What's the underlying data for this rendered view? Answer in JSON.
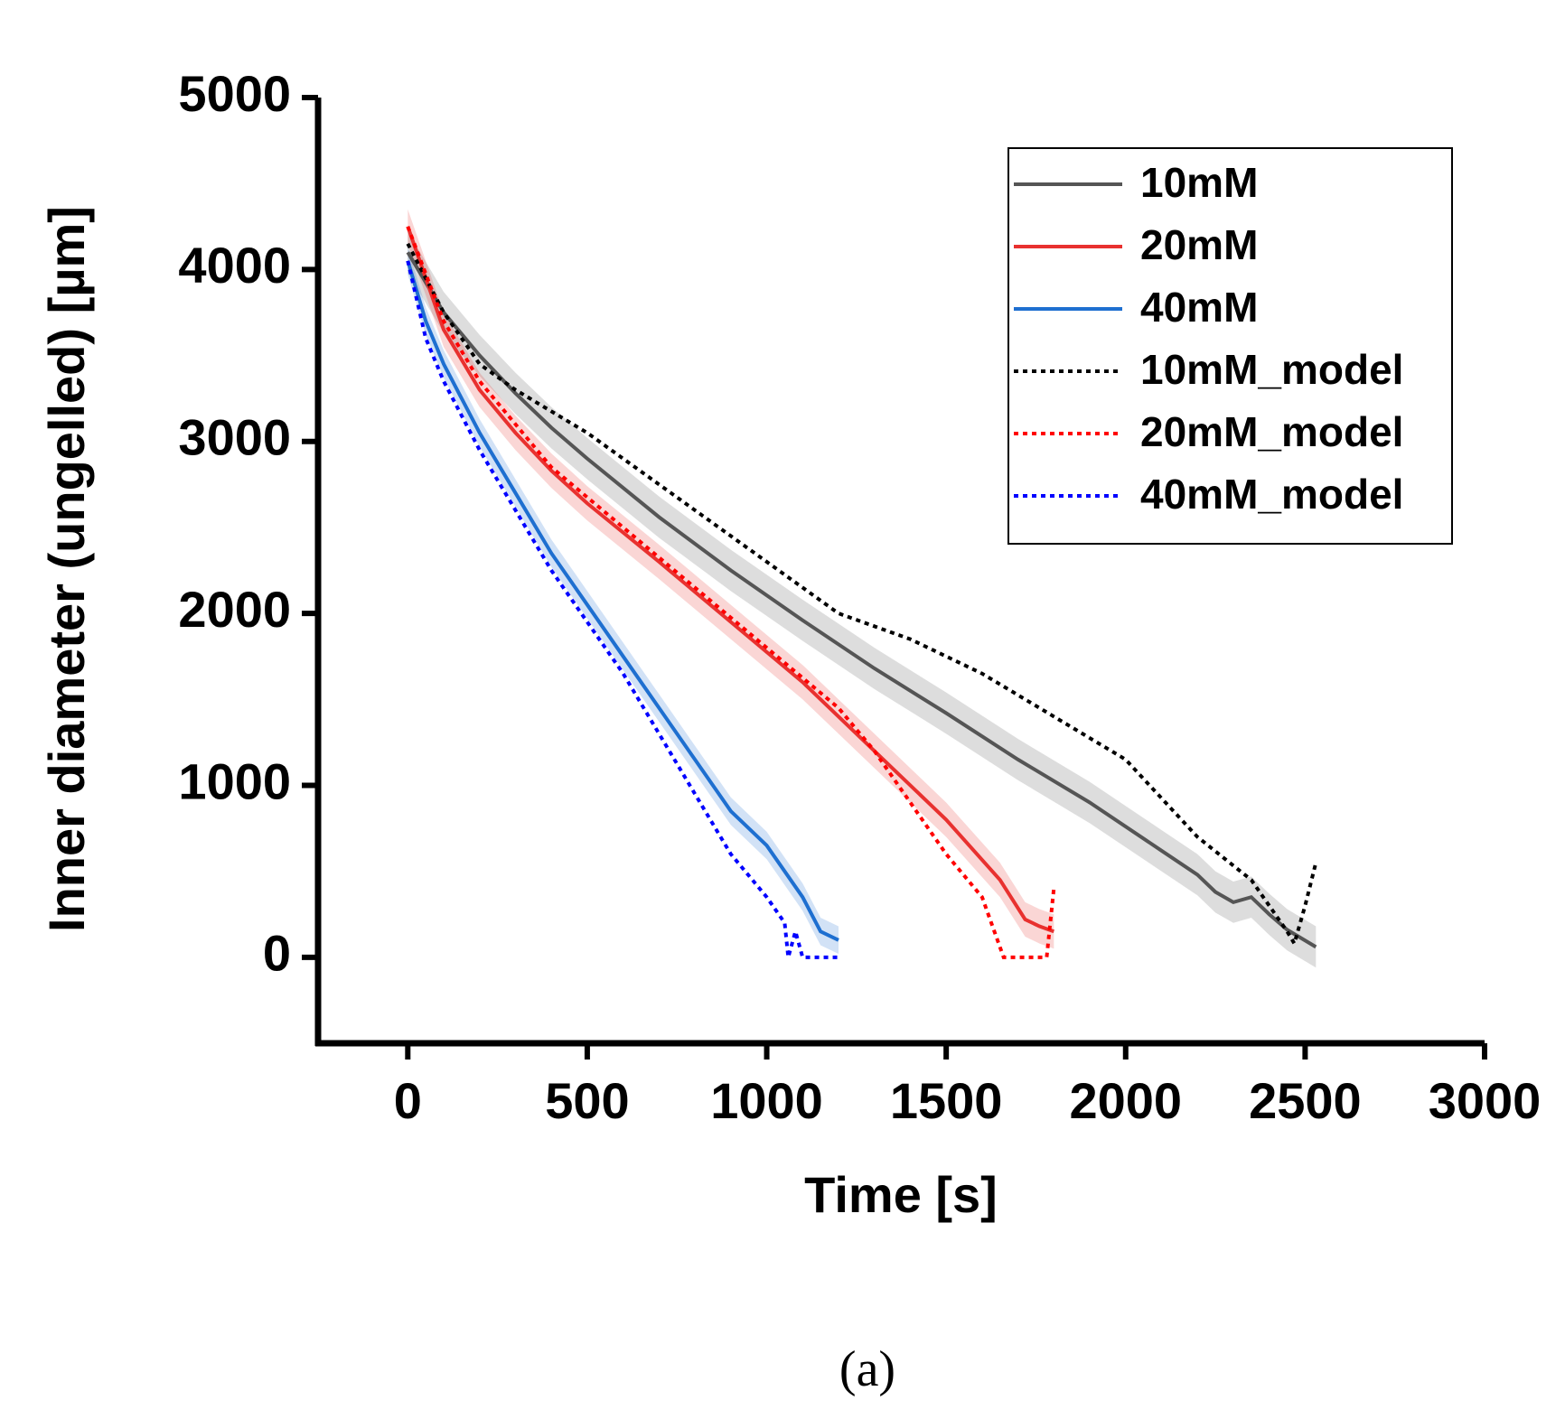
{
  "chart_data": {
    "type": "line",
    "xlabel": "Time [s]",
    "ylabel": "Inner diameter (ungelled) [µm]",
    "caption": "(a)",
    "xlim": [
      -250,
      3000
    ],
    "xticks": [
      0,
      500,
      1000,
      1500,
      2000,
      2500,
      3000
    ],
    "ylim": [
      -500,
      5000
    ],
    "yticks": [
      0,
      1000,
      2000,
      3000,
      4000,
      5000
    ],
    "legend": "upper right",
    "series": [
      {
        "name": "10mM",
        "color": "#555555",
        "dashed": false,
        "x": [
          0,
          100,
          200,
          300,
          400,
          500,
          700,
          900,
          1100,
          1300,
          1500,
          1700,
          1900,
          2100,
          2200,
          2250,
          2300,
          2350,
          2400,
          2450,
          2530
        ],
        "values": [
          4100,
          3750,
          3500,
          3280,
          3080,
          2900,
          2560,
          2250,
          1960,
          1680,
          1420,
          1150,
          900,
          620,
          480,
          380,
          320,
          350,
          250,
          160,
          60
        ],
        "upper": [
          4220,
          3870,
          3620,
          3400,
          3200,
          3020,
          2680,
          2370,
          2080,
          1800,
          1540,
          1270,
          1020,
          740,
          600,
          500,
          440,
          470,
          370,
          280,
          180
        ],
        "lower": [
          3980,
          3630,
          3380,
          3160,
          2960,
          2780,
          2440,
          2130,
          1840,
          1560,
          1300,
          1030,
          780,
          500,
          360,
          260,
          200,
          230,
          130,
          40,
          -60
        ]
      },
      {
        "name": "20mM",
        "color": "#e8312f",
        "dashed": false,
        "x": [
          0,
          100,
          200,
          300,
          400,
          500,
          700,
          900,
          1100,
          1300,
          1500,
          1650,
          1720,
          1760,
          1800
        ],
        "values": [
          4250,
          3650,
          3300,
          3050,
          2830,
          2640,
          2300,
          1950,
          1600,
          1200,
          800,
          450,
          220,
          180,
          150
        ],
        "upper": [
          4350,
          3750,
          3400,
          3150,
          2930,
          2740,
          2400,
          2050,
          1700,
          1300,
          900,
          550,
          320,
          280,
          250
        ],
        "lower": [
          4150,
          3550,
          3200,
          2950,
          2730,
          2540,
          2200,
          1850,
          1500,
          1100,
          700,
          350,
          120,
          80,
          50
        ]
      },
      {
        "name": "40mM",
        "color": "#1e6fd0",
        "dashed": false,
        "x": [
          0,
          50,
          100,
          200,
          300,
          400,
          500,
          600,
          700,
          800,
          900,
          1000,
          1100,
          1150,
          1200
        ],
        "values": [
          4050,
          3700,
          3450,
          3050,
          2700,
          2350,
          2050,
          1750,
          1450,
          1150,
          850,
          650,
          350,
          150,
          100
        ],
        "upper": [
          4130,
          3780,
          3530,
          3130,
          2780,
          2430,
          2130,
          1830,
          1530,
          1230,
          930,
          730,
          430,
          230,
          180
        ],
        "lower": [
          3970,
          3620,
          3370,
          2970,
          2620,
          2270,
          1970,
          1670,
          1370,
          1070,
          770,
          570,
          270,
          70,
          20
        ]
      },
      {
        "name": "10mM_model",
        "color": "#000000",
        "dashed": true,
        "x": [
          0,
          100,
          200,
          300,
          500,
          700,
          900,
          1100,
          1200,
          1400,
          1600,
          1800,
          2000,
          2200,
          2350,
          2450,
          2470,
          2500,
          2530
        ],
        "values": [
          4150,
          3750,
          3450,
          3300,
          3050,
          2750,
          2450,
          2150,
          2000,
          1850,
          1650,
          1400,
          1150,
          700,
          450,
          150,
          80,
          300,
          550
        ]
      },
      {
        "name": "20mM_model",
        "color": "#ff0000",
        "dashed": true,
        "x": [
          0,
          100,
          200,
          400,
          600,
          800,
          1000,
          1200,
          1300,
          1400,
          1500,
          1600,
          1660,
          1780,
          1800
        ],
        "values": [
          4250,
          3700,
          3350,
          2850,
          2500,
          2150,
          1800,
          1450,
          1200,
          900,
          600,
          350,
          0,
          0,
          400
        ]
      },
      {
        "name": "40mM_model",
        "color": "#0000ff",
        "dashed": true,
        "x": [
          0,
          50,
          100,
          200,
          300,
          400,
          500,
          600,
          700,
          800,
          900,
          1000,
          1050,
          1060,
          1080,
          1100,
          1200
        ],
        "values": [
          4050,
          3600,
          3350,
          2950,
          2600,
          2250,
          1950,
          1650,
          1300,
          950,
          600,
          350,
          200,
          0,
          150,
          0,
          0
        ]
      }
    ]
  }
}
